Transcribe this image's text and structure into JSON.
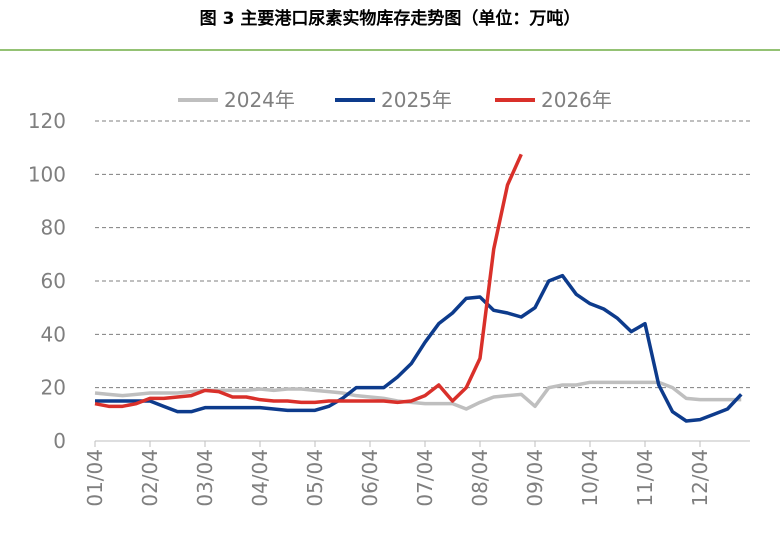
{
  "chart_data": {
    "type": "line",
    "title": "图 3 主要港口尿素实物库存走势图（单位：万吨）",
    "categories": [
      "01/04",
      null,
      null,
      null,
      "02/04",
      null,
      null,
      null,
      "03/04",
      null,
      null,
      null,
      "04/04",
      null,
      null,
      null,
      "05/04",
      null,
      null,
      null,
      "06/04",
      null,
      null,
      null,
      "07/04",
      null,
      null,
      null,
      "08/04",
      null,
      null,
      null,
      "09/04",
      null,
      null,
      null,
      "10/04",
      null,
      null,
      null,
      "11/04",
      null,
      null,
      null,
      "12/04",
      null,
      null,
      null
    ],
    "series": [
      {
        "name": "2024年",
        "color": "#bfbfbf",
        "values": [
          18,
          17.5,
          17,
          17.5,
          18,
          18,
          18,
          18.5,
          19,
          19,
          19,
          19,
          19.5,
          19,
          19.5,
          19.5,
          19,
          18.5,
          18,
          17,
          16.5,
          16,
          15,
          14.5,
          14,
          14,
          14,
          12,
          14.5,
          16.5,
          17,
          17.5,
          13,
          20,
          21,
          21,
          22,
          22,
          22,
          22,
          22,
          22,
          20,
          16,
          15.5,
          15.5,
          15.5,
          15.5
        ]
      },
      {
        "name": "2025年",
        "color": "#0d3b8c",
        "values": [
          15,
          15,
          15,
          15,
          15,
          13,
          11,
          11,
          12.5,
          12.5,
          12.5,
          12.5,
          12.5,
          12,
          11.5,
          11.5,
          11.5,
          13,
          16,
          20,
          20,
          20,
          24,
          29,
          37,
          44,
          48,
          53.5,
          54,
          49,
          48,
          46.5,
          50,
          60,
          62,
          55,
          51.5,
          49.5,
          46,
          41,
          44,
          21,
          11,
          7.5,
          8,
          10,
          12,
          17.5
        ]
      },
      {
        "name": "2026年",
        "color": "#d9302a",
        "values": [
          14,
          13,
          13,
          14,
          16,
          16,
          16.5,
          17,
          19,
          18.5,
          16.5,
          16.5,
          15.5,
          15,
          15,
          14.5,
          14.5,
          15,
          15,
          15,
          15,
          15,
          14.5,
          15,
          17,
          21,
          15,
          20,
          31,
          72,
          96,
          107.5,
          null,
          null,
          null,
          null,
          null,
          null,
          null,
          null,
          null,
          null,
          null,
          null,
          null,
          null,
          null,
          null
        ]
      }
    ],
    "ylim": [
      0,
      120
    ],
    "yticks": [
      0,
      20,
      40,
      60,
      80,
      100,
      120
    ],
    "grid": true
  }
}
